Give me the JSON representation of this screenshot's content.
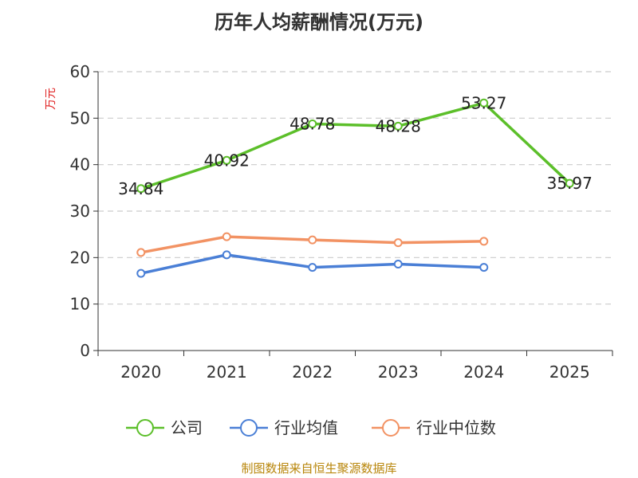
{
  "chart_data": {
    "type": "line",
    "title": "历年人均薪酬情况(万元)",
    "ylabel": "万元",
    "xlabel": "",
    "categories": [
      "2020",
      "2021",
      "2022",
      "2023",
      "2024",
      "2025"
    ],
    "ylim": [
      0,
      60
    ],
    "yticks": [
      0,
      10,
      20,
      30,
      40,
      50,
      60
    ],
    "grid": true,
    "legend_position": "bottom",
    "series": [
      {
        "name": "公司",
        "color": "#5cbf2a",
        "values": [
          34.84,
          40.92,
          48.78,
          48.28,
          53.27,
          35.97
        ],
        "labels": [
          "34.84",
          "40.92",
          "48.78",
          "48.28",
          "53.27",
          "35.97"
        ]
      },
      {
        "name": "行业均值",
        "color": "#4a7fd6",
        "values": [
          16.6,
          20.6,
          17.9,
          18.6,
          17.9,
          null
        ]
      },
      {
        "name": "行业中位数",
        "color": "#f29263",
        "values": [
          21.1,
          24.5,
          23.8,
          23.2,
          23.5,
          null
        ]
      }
    ]
  },
  "footer": {
    "source": "制图数据来自恒生聚源数据库"
  }
}
